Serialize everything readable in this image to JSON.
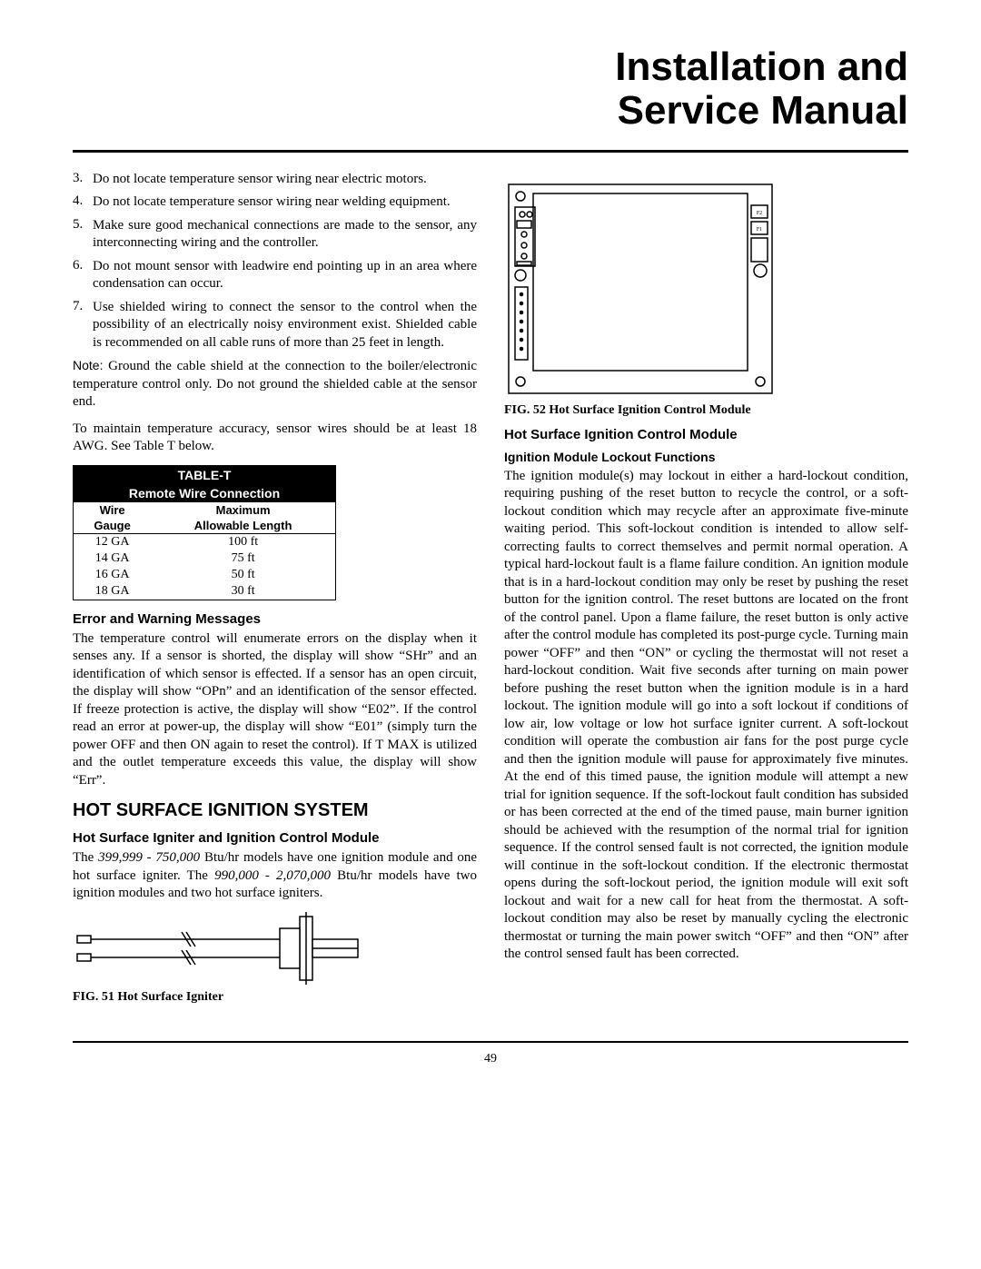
{
  "title_line1": "Installation and",
  "title_line2": "Service Manual",
  "left": {
    "items": [
      {
        "num": "3.",
        "text": "Do not locate temperature sensor wiring near electric motors."
      },
      {
        "num": "4.",
        "text": "Do not locate temperature sensor wiring near welding equipment."
      },
      {
        "num": "5.",
        "text": "Make sure good mechanical connections are made to the sensor, any interconnecting wiring and the controller."
      },
      {
        "num": "6.",
        "text": "Do not mount sensor with leadwire end pointing up in an area where condensation can occur."
      },
      {
        "num": "7.",
        "text": "Use shielded wiring to connect the sensor to the control when the possibility of an electrically noisy environment exist. Shielded cable is recommended on all cable runs of more than 25 feet in length."
      }
    ],
    "note_label": "Note:",
    "note_text": " Ground the cable shield at the connection to the boiler/electronic temperature control only. Do not ground the shielded cable at the sensor end.",
    "accuracy_text": "To maintain temperature accuracy, sensor wires should be at least 18 AWG.  See Table T below.",
    "table": {
      "title1": "TABLE-T",
      "title2": "Remote Wire Connection",
      "col1a": "Wire",
      "col1b": "Gauge",
      "col2a": "Maximum",
      "col2b": "Allowable Length",
      "rows": [
        [
          "12 GA",
          "100 ft"
        ],
        [
          "14 GA",
          "75 ft"
        ],
        [
          "16 GA",
          "50 ft"
        ],
        [
          "18 GA",
          "30 ft"
        ]
      ],
      "header_bg": "#000000",
      "header_fg": "#ffffff"
    },
    "error_heading": "Error and Warning Messages",
    "error_text": "The temperature control will enumerate errors on the display when it senses any. If a sensor is shorted, the display will show “SHr” and an identification of which sensor is effected. If a sensor has an open circuit, the display will show “OPn” and an identification of the sensor effected. If freeze protection is active, the display will show “E02”. If the control read an error at power-up, the display will show “E01” (simply turn the power OFF and then ON again to reset the control). If  T MAX is utilized and the outlet temperature exceeds this value, the display will show “Err”.",
    "hsis_heading": "HOT SURFACE IGNITION SYSTEM",
    "hsicm_heading": "Hot Surface Igniter and Ignition Control Module",
    "hsicm_text_pre": "The ",
    "hsicm_range1": "399,999 - 750,000",
    "hsicm_text_mid": " Btu/hr models have one ignition module and one hot surface igniter.  The ",
    "hsicm_range2": "990,000 - 2,070,000",
    "hsicm_text_post": " Btu/hr models have two ignition modules and two hot surface igniters.",
    "fig51_caption": "FIG. 51  Hot Surface Igniter"
  },
  "right": {
    "fig52_caption": "FIG. 52  Hot Surface Ignition Control Module",
    "hscm_heading": "Hot Surface Ignition Control Module",
    "lockout_heading": "Ignition Module Lockout Functions",
    "lockout_text": "The ignition module(s) may lockout in either a hard-lockout condition, requiring pushing of the reset button to recycle the control, or a soft-lockout condition which may recycle after an approximate five-minute waiting period. This soft-lockout condition is intended to allow self-correcting faults to correct themselves and permit normal operation. A typical hard-lockout fault is a flame failure condition. An ignition module that is in a hard-lockout condition may only be reset by pushing the reset button for the ignition control. The reset buttons are located on the front of the control panel. Upon a flame failure, the reset button is only active after the control module has completed its post-purge cycle. Turning main power “OFF” and then “ON” or cycling the thermostat will not reset a hard-lockout condition. Wait five seconds after turning on main power before pushing the reset button when the ignition module is in a hard lockout. The ignition module will go into a soft lockout if conditions of low air, low voltage or low hot surface igniter current. A soft-lockout condition will operate the combustion air fans for the post purge cycle and then the ignition module will pause for approximately five minutes. At the end of this timed pause, the ignition module will attempt a new trial for ignition sequence. If the soft-lockout fault condition has subsided or has been corrected at the end of the timed pause, main burner ignition should be achieved with the resumption of the normal trial for ignition sequence. If the control sensed fault is not corrected, the ignition module will continue in the soft-lockout condition. If the electronic thermostat opens during the soft-lockout period, the ignition module will exit soft lockout and wait for a new call for heat from the thermostat. A soft-lockout condition may also be reset by manually cycling the electronic thermostat or turning the main power switch “OFF” and then “ON” after the control sensed fault has been corrected."
  },
  "page_number": "49",
  "colors": {
    "text": "#000000",
    "bg": "#ffffff",
    "rule": "#000000"
  }
}
